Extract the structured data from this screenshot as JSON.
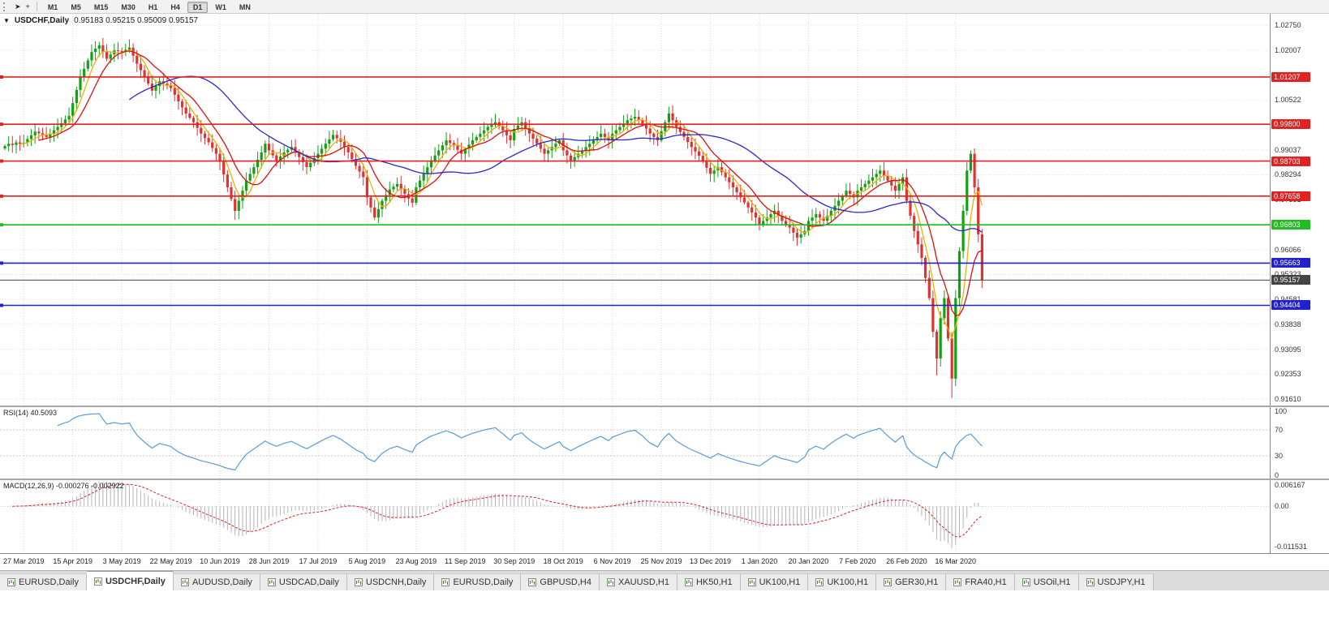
{
  "toolbar": {
    "tool_icons": [
      {
        "name": "pointer-icon",
        "glyph": "➤"
      },
      {
        "name": "crosshair-icon",
        "glyph": "+"
      }
    ],
    "timeframes": [
      "M1",
      "M5",
      "M15",
      "M30",
      "H1",
      "H4",
      "D1",
      "W1",
      "MN"
    ],
    "active_timeframe": "D1"
  },
  "chart": {
    "collapse_icon": "▼",
    "title": "USDCHF,Daily",
    "ohlc": "0.95183 0.95215 0.95009 0.95157",
    "open": "0.95183",
    "high": "0.95215",
    "low": "0.95009",
    "close": "0.95157"
  },
  "price_axis": {
    "ticks": [
      "1.02750",
      "1.02007",
      "1.01265",
      "1.00522",
      "0.99779",
      "0.99037",
      "0.98294",
      "0.97551",
      "0.96809",
      "0.96066",
      "0.95323",
      "0.94581",
      "0.93838",
      "0.93095",
      "0.92353",
      "0.91610"
    ],
    "levels": [
      {
        "label": "1.01207",
        "price": 1.01207,
        "color": "#e02222",
        "type": "resistance"
      },
      {
        "label": "0.99800",
        "price": 0.998,
        "color": "#e02222",
        "type": "resistance"
      },
      {
        "label": "0.98703",
        "price": 0.98703,
        "color": "#e02222",
        "type": "resistance"
      },
      {
        "label": "0.97658",
        "price": 0.97658,
        "color": "#e02222",
        "type": "resistance"
      },
      {
        "label": "0.96803",
        "price": 0.96803,
        "color": "#22bb22",
        "type": "support"
      },
      {
        "label": "0.95663",
        "price": 0.95663,
        "color": "#2222cc",
        "type": "support"
      },
      {
        "label": "0.94404",
        "price": 0.94404,
        "color": "#2222cc",
        "type": "support"
      },
      {
        "label": "0.95157",
        "price": 0.95157,
        "color": "#444444",
        "type": "bid"
      }
    ]
  },
  "chart_data": {
    "type": "candlestick",
    "symbol": "USDCHF",
    "timeframe": "Daily",
    "title": "USDCHF,Daily",
    "x_labels": [
      "27 Mar 2019",
      "15 Apr 2019",
      "3 May 2019",
      "22 May 2019",
      "10 Jun 2019",
      "28 Jun 2019",
      "17 Jul 2019",
      "5 Aug 2019",
      "23 Aug 2019",
      "11 Sep 2019",
      "30 Sep 2019",
      "18 Oct 2019",
      "6 Nov 2019",
      "25 Nov 2019",
      "13 Dec 2019",
      "1 Jan 2020",
      "20 Jan 2020",
      "7 Feb 2020",
      "26 Feb 2020",
      "16 Mar 2020"
    ],
    "first_label_candle": 5,
    "candles_per_label": 13,
    "price_range": {
      "top": 1.0309,
      "bottom": 0.9142
    },
    "first_open": 0.9908,
    "closes": [
      0.9915,
      0.9922,
      0.9918,
      0.9926,
      0.9921,
      0.9925,
      0.9936,
      0.9947,
      0.9958,
      0.9953,
      0.9947,
      0.9942,
      0.9952,
      0.9962,
      0.9972,
      0.9983,
      0.9994,
      1.0005,
      1.0043,
      1.0082,
      1.012,
      1.0145,
      1.017,
      1.0195,
      1.0205,
      1.0215,
      1.0195,
      1.0175,
      1.0188,
      1.02,
      1.0198,
      1.0195,
      1.0202,
      1.0208,
      1.0184,
      1.016,
      1.0141,
      1.0122,
      1.0101,
      1.008,
      1.0094,
      1.0108,
      1.0101,
      1.0095,
      1.0088,
      1.0068,
      1.0048,
      1.003,
      1.0012,
      0.9999,
      0.9986,
      0.9969,
      0.9952,
      0.9939,
      0.9926,
      0.9909,
      0.9892,
      0.9868,
      0.983,
      0.9792,
      0.9757,
      0.9722,
      0.9752,
      0.9782,
      0.9812,
      0.9832,
      0.9852,
      0.9874,
      0.9896,
      0.9922,
      0.9902,
      0.9887,
      0.9872,
      0.9884,
      0.9896,
      0.9904,
      0.9912,
      0.9897,
      0.9882,
      0.9867,
      0.9852,
      0.9865,
      0.9879,
      0.9892,
      0.9907,
      0.9922,
      0.9935,
      0.9948,
      0.9938,
      0.9928,
      0.9912,
      0.9896,
      0.9876,
      0.9856,
      0.9839,
      0.9822,
      0.9762,
      0.9732,
      0.9702,
      0.9727,
      0.9752,
      0.9769,
      0.9786,
      0.9794,
      0.9802,
      0.9787,
      0.9772,
      0.9759,
      0.9746,
      0.9792,
      0.9812,
      0.9832,
      0.9852,
      0.9872,
      0.9887,
      0.9902,
      0.9917,
      0.9932,
      0.9924,
      0.9916,
      0.9904,
      0.9892,
      0.9906,
      0.9919,
      0.9932,
      0.9942,
      0.9952,
      0.9962,
      0.9972,
      0.9979,
      0.9986,
      0.9974,
      0.9962,
      0.9947,
      0.9932,
      0.9966,
      0.9976,
      0.9986,
      0.9969,
      0.9952,
      0.9937,
      0.9922,
      0.9907,
      0.9892,
      0.9902,
      0.9912,
      0.9922,
      0.9932,
      0.9902,
      0.9887,
      0.9872,
      0.9882,
      0.9892,
      0.9902,
      0.9912,
      0.9922,
      0.9932,
      0.9942,
      0.9952,
      0.9942,
      0.9932,
      0.9952,
      0.9962,
      0.9972,
      0.9982,
      0.9992,
      0.9997,
      1.0002,
      0.9992,
      0.9982,
      0.9967,
      0.9952,
      0.9942,
      0.9932,
      0.9959,
      0.9986,
      1.0012,
      0.9992,
      0.9972,
      0.9957,
      0.9942,
      0.9927,
      0.9912,
      0.9899,
      0.9886,
      0.9868,
      0.985,
      0.9832,
      0.9842,
      0.9852,
      0.9837,
      0.9822,
      0.9807,
      0.9792,
      0.9777,
      0.9762,
      0.9747,
      0.9732,
      0.9717,
      0.9702,
      0.9682,
      0.9692,
      0.9702,
      0.9712,
      0.9722,
      0.9707,
      0.9692,
      0.9682,
      0.9672,
      0.9657,
      0.9642,
      0.9652,
      0.9662,
      0.9692,
      0.9702,
      0.9712,
      0.9702,
      0.9692,
      0.9707,
      0.9722,
      0.9737,
      0.9752,
      0.9767,
      0.9782,
      0.9772,
      0.9762,
      0.9782,
      0.9792,
      0.9802,
      0.9812,
      0.9822,
      0.9832,
      0.9842,
      0.9827,
      0.9812,
      0.9797,
      0.9782,
      0.9802,
      0.9822,
      0.9752,
      0.9707,
      0.9662,
      0.9622,
      0.9582,
      0.9522,
      0.9462,
      0.9362,
      0.9282,
      0.9402,
      0.9462,
      0.9342,
      0.9222,
      0.9462,
      0.9602,
      0.9722,
      0.9842,
      0.9892,
      0.9792,
      0.9652,
      0.9516
    ],
    "wick_overrides": {
      "25": {
        "high": 1.0226
      },
      "61": {
        "low": 0.9695
      },
      "98": {
        "low": 0.9694
      },
      "247": {
        "low": 0.9232
      },
      "251": {
        "low": 0.9165
      },
      "256": {
        "high": 0.9902
      }
    },
    "up_color": "#13a113",
    "down_color": "#df3232",
    "moving_averages": [
      {
        "name": "fast-ma",
        "period": 5,
        "color": "#e8b400"
      },
      {
        "name": "medium-ma",
        "period": 10,
        "color": "#dd1111"
      },
      {
        "name": "slow-ma",
        "period": 34,
        "color": "#2929c8"
      }
    ]
  },
  "rsi": {
    "label": "RSI(14) 40.5093",
    "period": 14,
    "current": "40.5093",
    "axis": [
      "100",
      "70",
      "30",
      "0"
    ],
    "levels": [
      70,
      30
    ],
    "line_color": "#5b9bd5"
  },
  "macd": {
    "label": "MACD(12,26,9) -0.000276 -0.002922",
    "current_macd": "-0.000276",
    "current_signal": "-0.002922",
    "axis": [
      "0.006167",
      "0.00",
      "-0.011531"
    ],
    "range_top": 0.0066,
    "range_bottom": -0.0125,
    "hist_color": "#b4b4b4",
    "signal_color": "#dd2222"
  },
  "tabs": {
    "active_index": 1,
    "items": [
      "EURUSD,Daily",
      "USDCHF,Daily",
      "AUDUSD,Daily",
      "USDCAD,Daily",
      "USDCNH,Daily",
      "EURUSD,Daily",
      "GBPUSD,H4",
      "XAUUSD,H1",
      "HK50,H1",
      "UK100,H1",
      "UK100,H1",
      "GER30,H1",
      "FRA40,H1",
      "USOil,H1",
      "USDJPY,H1"
    ]
  }
}
